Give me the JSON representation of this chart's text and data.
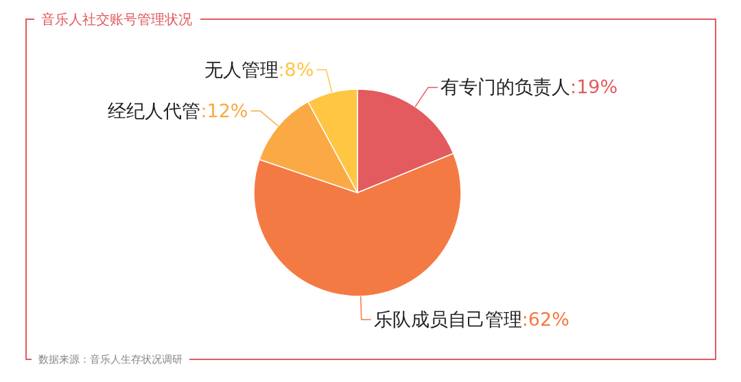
{
  "chart_data": {
    "type": "pie",
    "title": "音乐人社交账号管理状况",
    "categories": [
      "有专门的负责人",
      "乐队成员自己管理",
      "经纪人代管",
      "无人管理"
    ],
    "values": [
      19,
      62,
      12,
      8
    ],
    "value_labels": [
      ":19%",
      ":62%",
      ":12%",
      ":8%"
    ],
    "colors": [
      "#e35a5f",
      "#f47a44",
      "#fba944",
      "#fec643"
    ],
    "annotations": [
      "数据来源：音乐人生存状况调研"
    ]
  }
}
